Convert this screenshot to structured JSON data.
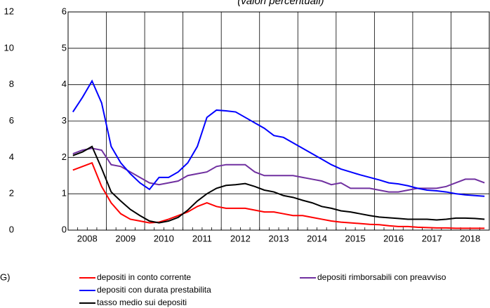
{
  "chart_data": {
    "type": "line",
    "title": "(valori percentuali)",
    "annotation": "G)",
    "categories": [
      "2008",
      null,
      null,
      null,
      "2009",
      null,
      null,
      null,
      "2010",
      null,
      null,
      null,
      "2011",
      null,
      null,
      null,
      "2012",
      null,
      null,
      null,
      "2013",
      null,
      null,
      null,
      "2014",
      null,
      null,
      null,
      "2015",
      null,
      null,
      null,
      "2016",
      null,
      null,
      null,
      "2017",
      null,
      null,
      null,
      "2018",
      null,
      null,
      null
    ],
    "ylim": [
      0,
      12
    ],
    "yticks": [
      0,
      2,
      4,
      6,
      8,
      10,
      12
    ],
    "y2lim": [
      0,
      6
    ],
    "y2ticks": [
      0,
      1,
      2,
      3,
      4,
      5,
      6
    ],
    "grid": true,
    "series": [
      {
        "name": "depositi in conto corrente",
        "color": "#ff0000",
        "axis": "y2",
        "values": [
          1.65,
          1.75,
          1.85,
          1.2,
          0.75,
          0.45,
          0.3,
          0.25,
          0.2,
          0.22,
          0.3,
          0.4,
          0.5,
          0.65,
          0.75,
          0.65,
          0.6,
          0.6,
          0.6,
          0.55,
          0.5,
          0.5,
          0.45,
          0.4,
          0.4,
          0.35,
          0.3,
          0.25,
          0.22,
          0.2,
          0.18,
          0.16,
          0.15,
          0.12,
          0.1,
          0.1,
          0.08,
          0.07,
          0.06,
          0.06,
          0.05,
          0.05,
          0.05,
          0.05
        ]
      },
      {
        "name": "depositi rimborsabili con preavviso",
        "color": "#7030a0",
        "axis": "y2",
        "values": [
          2.1,
          2.2,
          2.25,
          2.2,
          1.8,
          1.75,
          1.6,
          1.45,
          1.3,
          1.25,
          1.3,
          1.35,
          1.5,
          1.55,
          1.6,
          1.75,
          1.8,
          1.8,
          1.8,
          1.6,
          1.5,
          1.5,
          1.5,
          1.5,
          1.45,
          1.4,
          1.35,
          1.25,
          1.3,
          1.15,
          1.15,
          1.15,
          1.1,
          1.05,
          1.05,
          1.1,
          1.15,
          1.15,
          1.15,
          1.2,
          1.3,
          1.4,
          1.4,
          1.3
        ]
      },
      {
        "name": "depositi con durata prestabilita",
        "color": "#0000ff",
        "axis": "y2",
        "values": [
          3.25,
          3.65,
          4.1,
          3.5,
          2.3,
          1.85,
          1.55,
          1.3,
          1.12,
          1.45,
          1.45,
          1.6,
          1.85,
          2.3,
          3.1,
          3.3,
          3.28,
          3.25,
          3.1,
          2.95,
          2.8,
          2.6,
          2.55,
          2.4,
          2.25,
          2.1,
          1.95,
          1.8,
          1.68,
          1.6,
          1.52,
          1.45,
          1.38,
          1.3,
          1.27,
          1.22,
          1.15,
          1.1,
          1.08,
          1.05,
          1.0,
          0.97,
          0.95,
          0.93
        ]
      },
      {
        "name": "tasso medio sui depositi",
        "color": "#000000",
        "axis": "y2",
        "values": [
          2.05,
          2.15,
          2.3,
          1.7,
          1.05,
          0.8,
          0.57,
          0.4,
          0.25,
          0.2,
          0.25,
          0.35,
          0.55,
          0.8,
          1.0,
          1.15,
          1.23,
          1.25,
          1.28,
          1.2,
          1.1,
          1.05,
          0.95,
          0.9,
          0.82,
          0.75,
          0.65,
          0.6,
          0.53,
          0.5,
          0.45,
          0.4,
          0.36,
          0.34,
          0.32,
          0.3,
          0.3,
          0.3,
          0.28,
          0.3,
          0.33,
          0.33,
          0.32,
          0.3
        ]
      }
    ]
  }
}
